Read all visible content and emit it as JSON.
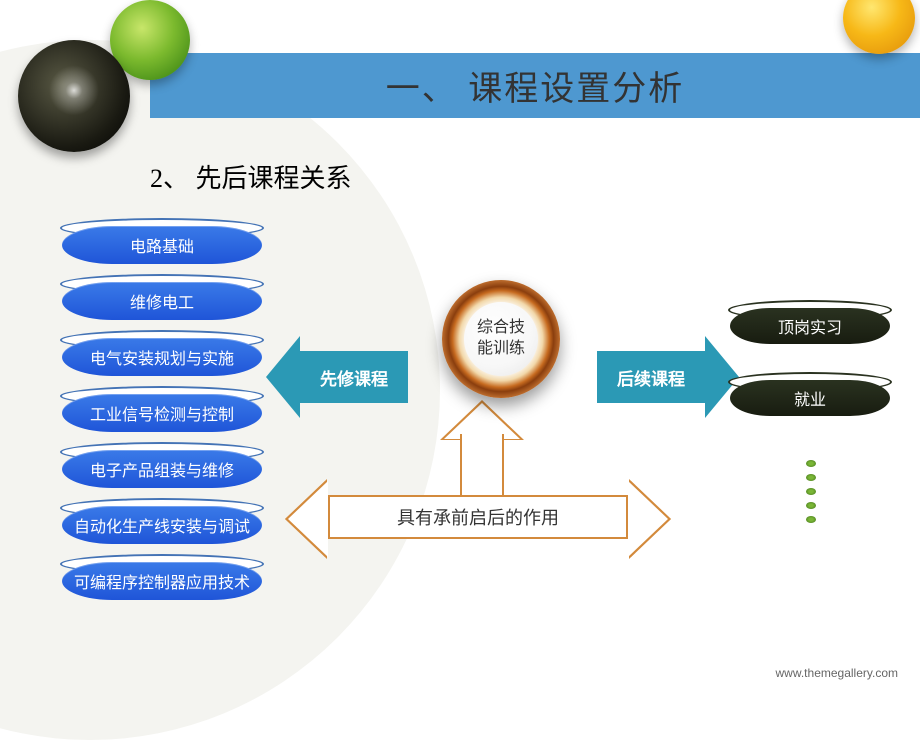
{
  "header": {
    "title": "一、 课程设置分析",
    "title_color": "#333333",
    "bar_color": "#4e98d0",
    "font_size": 34
  },
  "subtitle": {
    "text": "2、 先后课程关系",
    "font_size": 26
  },
  "left_courses": {
    "box_color": "#1f55d8",
    "text_color": "#ffffff",
    "border_color": "#4473b5",
    "font_size": 16,
    "items": [
      "电路基础",
      "维修电工",
      "电气安装规划与实施",
      "工业信号检测与控制",
      "电子产品组装与维修",
      "自动化生产线安装与调试",
      "可编程序控制器应用技术"
    ]
  },
  "right_courses": {
    "box_color": "#1a1e12",
    "text_color": "#ffffff",
    "font_size": 16,
    "items": [
      "顶岗实习",
      "就业"
    ]
  },
  "center": {
    "line1": "综合技",
    "line2": "能训练",
    "ring_color": "#b05616",
    "inner_bg": "#ffffff",
    "font_size": 16
  },
  "arrows": {
    "left_label": "先修课程",
    "right_label": "后续课程",
    "arrow_color": "#2b99b5",
    "arrow_text_color": "#ffffff",
    "arrow_font_size": 17,
    "bottom_label": "具有承前启后的作用",
    "bottom_border_color": "#d38a3c",
    "bottom_font_size": 18
  },
  "deco": {
    "bg_circle_color": "#f4f4f0",
    "circle1_colors": [
      "#5a5a45",
      "#1a1a12"
    ],
    "circle2_colors": [
      "#c8e66a",
      "#2e7a0e"
    ],
    "circle3_colors": [
      "#ffe770",
      "#de8b07"
    ],
    "dot_color": "#5a9028",
    "dot_count": 5
  },
  "footer": {
    "text": "www.themegallery.com",
    "font_size": 12,
    "color": "#666666"
  }
}
